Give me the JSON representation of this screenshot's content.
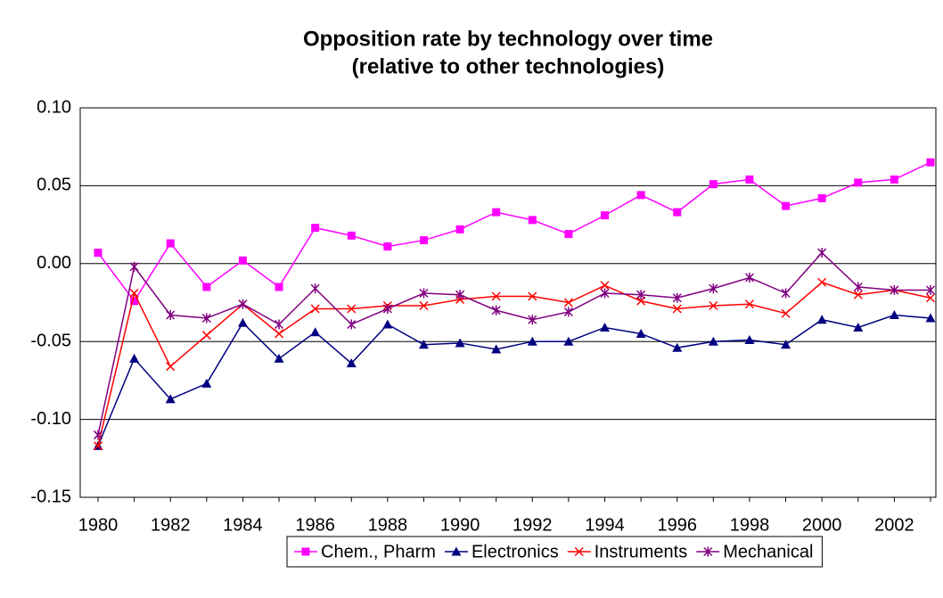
{
  "chart_data": {
    "type": "line",
    "title": [
      "Opposition rate by technology over time",
      "(relative to other technologies)"
    ],
    "categories": [
      "1980",
      null,
      "1982",
      null,
      "1984",
      null,
      "1986",
      null,
      "1988",
      null,
      "1990",
      null,
      "1992",
      null,
      "1994",
      null,
      "1996",
      null,
      "1998",
      null,
      "2000",
      null,
      "2002",
      null
    ],
    "series": [
      {
        "name": "Chem., Pharm",
        "color": "#ff00ff",
        "marker": "square",
        "values": [
          0.007,
          -0.024,
          0.013,
          -0.015,
          0.002,
          -0.015,
          0.023,
          0.018,
          0.011,
          0.015,
          0.022,
          0.033,
          0.028,
          0.019,
          0.031,
          0.044,
          0.033,
          0.051,
          0.054,
          0.037,
          0.042,
          0.052,
          0.054,
          0.065
        ]
      },
      {
        "name": "Electronics",
        "color": "#000080",
        "marker": "triangle",
        "values": [
          -0.117,
          -0.061,
          -0.087,
          -0.077,
          -0.038,
          -0.061,
          -0.044,
          -0.064,
          -0.039,
          -0.052,
          -0.051,
          -0.055,
          -0.05,
          -0.05,
          -0.041,
          -0.045,
          -0.054,
          -0.05,
          -0.049,
          -0.052,
          -0.036,
          -0.041,
          -0.033,
          -0.035
        ]
      },
      {
        "name": "Instruments",
        "color": "#ff0000",
        "marker": "x",
        "values": [
          -0.117,
          -0.019,
          -0.066,
          -0.046,
          -0.026,
          -0.045,
          -0.029,
          -0.029,
          -0.027,
          -0.027,
          -0.023,
          -0.021,
          -0.021,
          -0.025,
          -0.014,
          -0.024,
          -0.029,
          -0.027,
          -0.026,
          -0.032,
          -0.012,
          -0.02,
          -0.017,
          -0.022
        ]
      },
      {
        "name": "Mechanical",
        "color": "#800080",
        "marker": "asterisk",
        "values": [
          -0.11,
          -0.002,
          -0.033,
          -0.035,
          -0.026,
          -0.039,
          -0.016,
          -0.039,
          -0.029,
          -0.019,
          -0.02,
          -0.03,
          -0.036,
          -0.031,
          -0.019,
          -0.02,
          -0.022,
          -0.016,
          -0.009,
          -0.019,
          0.007,
          -0.015,
          -0.017,
          -0.017
        ]
      }
    ],
    "ylim": [
      -0.15,
      0.1
    ],
    "yticks": [
      {
        "value": -0.15,
        "label": "-0.15"
      },
      {
        "value": -0.1,
        "label": "-0.10"
      },
      {
        "value": -0.05,
        "label": "-0.05"
      },
      {
        "value": 0,
        "label": "0.00"
      },
      {
        "value": 0.05,
        "label": "0.05"
      },
      {
        "value": 0.1,
        "label": "0.10"
      }
    ],
    "grid": true,
    "legend": "bottom"
  }
}
